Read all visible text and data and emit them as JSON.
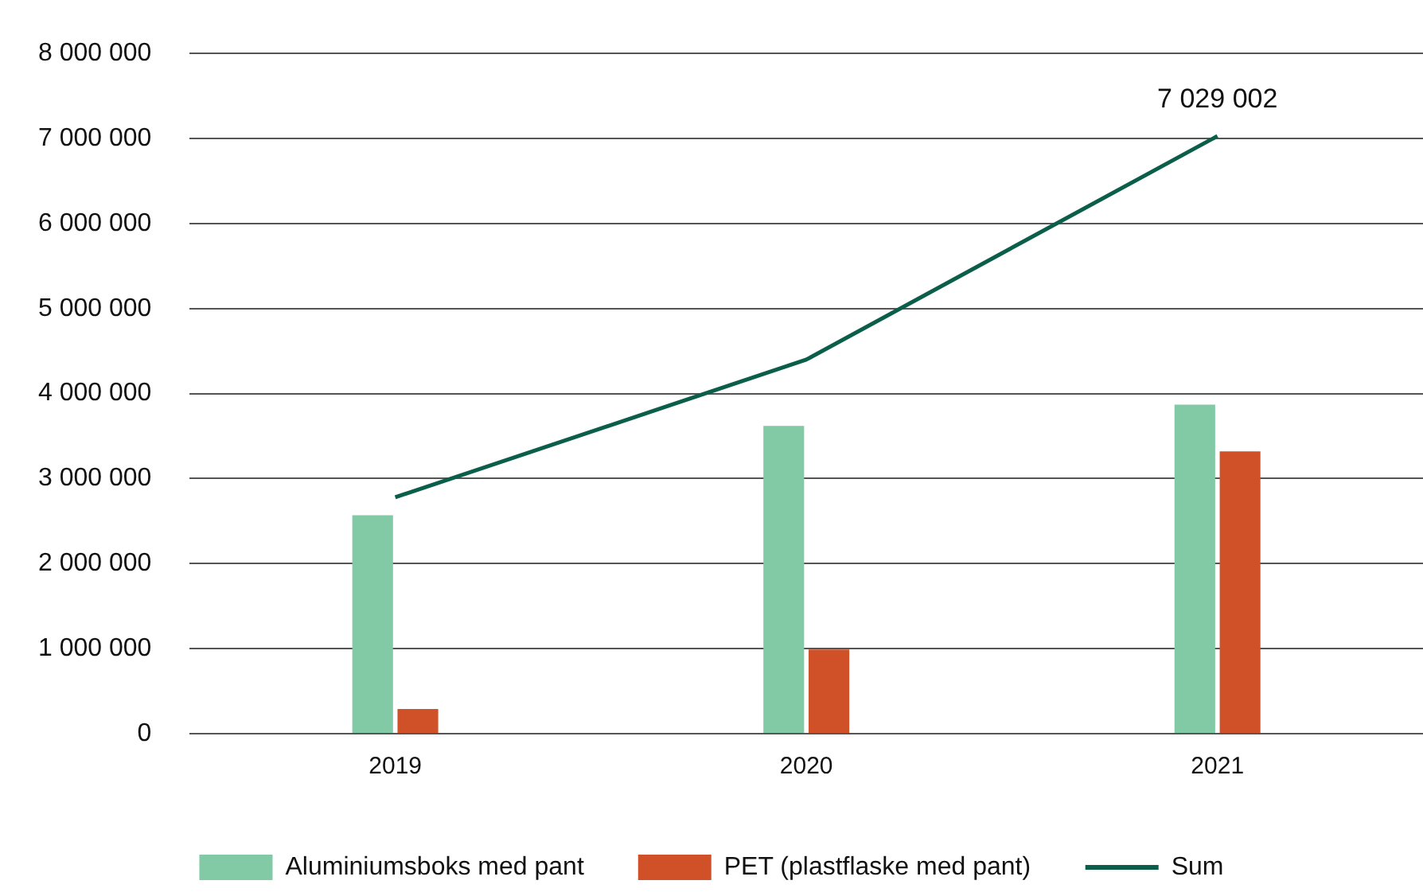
{
  "chart_data": {
    "type": "bar",
    "categories": [
      "2019",
      "2020",
      "2021"
    ],
    "series": [
      {
        "name": "Aluminiumsboks med pant",
        "color": "#82c9a5",
        "values": [
          2570000,
          3620000,
          3870000
        ]
      },
      {
        "name": "PET (plastflaske med pant)",
        "color": "#d05128",
        "values": [
          290000,
          990000,
          3320000
        ]
      },
      {
        "name": "Sum",
        "type": "line",
        "color": "#0b5e4a",
        "values": [
          2780000,
          4400000,
          7029002
        ],
        "value_labels": [
          null,
          null,
          "7 029 002"
        ]
      }
    ],
    "ylim": [
      0,
      8000000
    ],
    "yticks": [
      {
        "value": 0,
        "label": "0"
      },
      {
        "value": 1000000,
        "label": "1 000 000"
      },
      {
        "value": 2000000,
        "label": "2 000 000"
      },
      {
        "value": 3000000,
        "label": "3 000 000"
      },
      {
        "value": 4000000,
        "label": "4 000 000"
      },
      {
        "value": 5000000,
        "label": "5 000 000"
      },
      {
        "value": 6000000,
        "label": "6 000 000"
      },
      {
        "value": 7000000,
        "label": "7 000 000"
      },
      {
        "value": 8000000,
        "label": "8 000 000"
      }
    ],
    "grid": "y",
    "legend": "bottom",
    "marker": "none"
  }
}
